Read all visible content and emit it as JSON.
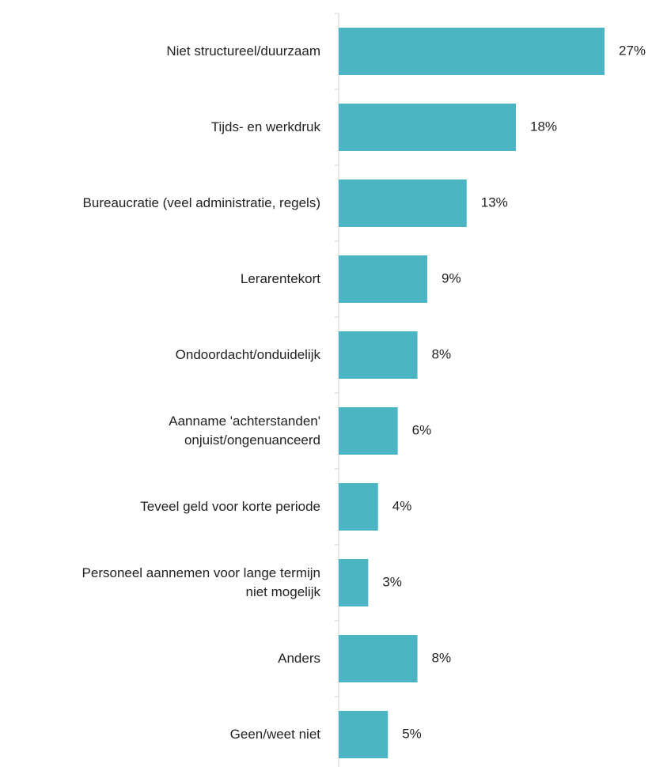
{
  "chart_data": {
    "type": "bar",
    "orientation": "horizontal",
    "categories": [
      "Niet structureel/duurzaam",
      "Tijds- en werkdruk",
      "Bureaucratie (veel administratie, regels)",
      "Lerarentekort",
      "Ondoordacht/onduidelijk",
      "Aanname 'achterstanden'\nonjuist/ongenuanceerd",
      "Teveel geld voor korte periode",
      "Personeel aannemen voor lange termijn\nniet mogelijk",
      "Anders",
      "Geen/weet niet"
    ],
    "values": [
      27,
      18,
      13,
      9,
      8,
      6,
      4,
      3,
      8,
      5
    ],
    "value_labels": [
      "27%",
      "18%",
      "13%",
      "9%",
      "8%",
      "6%",
      "4%",
      "3%",
      "8%",
      "5%"
    ],
    "color": "#4bb5c4"
  }
}
